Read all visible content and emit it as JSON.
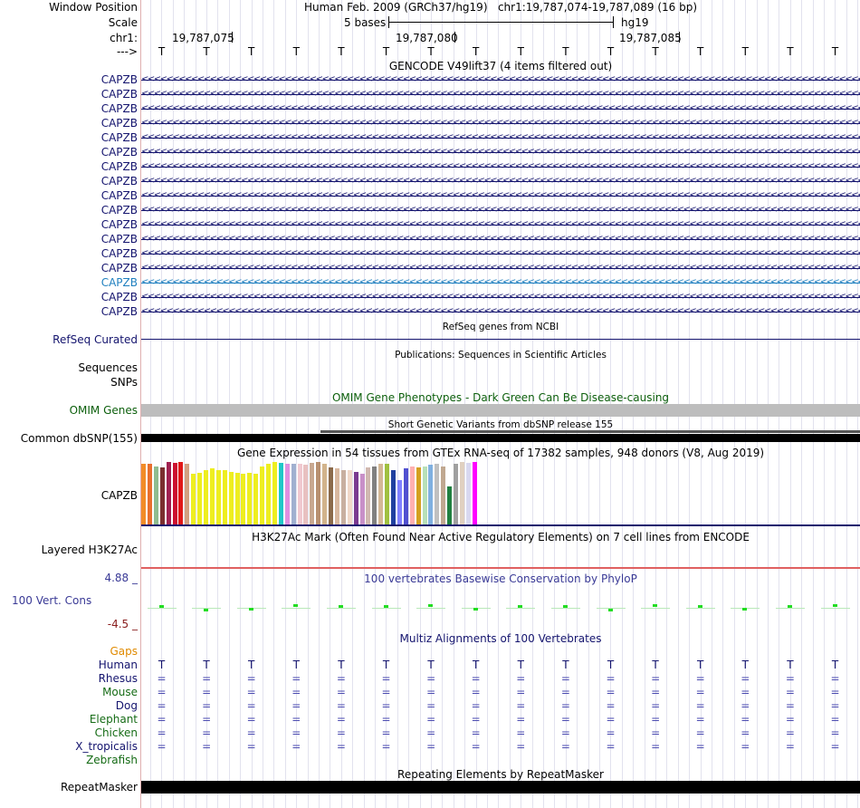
{
  "header": {
    "window_position_label": "Window Position",
    "window_position_text": "Human Feb. 2009 (GRCh37/hg19)   chr1:19,787,074-19,787,089 (16 bp)",
    "scale_label": "Scale",
    "scale_text": "5 bases",
    "scale_assembly": "hg19",
    "chrom_label": "chr1:",
    "coord_ticks": [
      "19,787,075",
      "19,787,080",
      "19,787,085"
    ],
    "strand_label": "--->",
    "bases": [
      "T",
      "T",
      "T",
      "T",
      "T",
      "T",
      "T",
      "T",
      "T",
      "T",
      "T",
      "T",
      "T",
      "T",
      "T",
      "T"
    ]
  },
  "gencode": {
    "title": "GENCODE V49lift37 (4 items filtered out)",
    "genes": [
      {
        "label": "CAPZB",
        "highlight": false
      },
      {
        "label": "CAPZB",
        "highlight": false
      },
      {
        "label": "CAPZB",
        "highlight": false
      },
      {
        "label": "CAPZB",
        "highlight": false
      },
      {
        "label": "CAPZB",
        "highlight": false
      },
      {
        "label": "CAPZB",
        "highlight": false
      },
      {
        "label": "CAPZB",
        "highlight": false
      },
      {
        "label": "CAPZB",
        "highlight": false
      },
      {
        "label": "CAPZB",
        "highlight": false
      },
      {
        "label": "CAPZB",
        "highlight": false
      },
      {
        "label": "CAPZB",
        "highlight": false
      },
      {
        "label": "CAPZB",
        "highlight": false
      },
      {
        "label": "CAPZB",
        "highlight": false
      },
      {
        "label": "CAPZB",
        "highlight": false
      },
      {
        "label": "CAPZB",
        "highlight": true
      },
      {
        "label": "CAPZB",
        "highlight": false
      },
      {
        "label": "CAPZB",
        "highlight": false
      }
    ],
    "chevron_text": "<<<<<<<<<<<<<<<<<<<<<<<<<<<<<<<<<<<<<<<<<<<<<<<<<<<<<<<<<<<<<<<<<<<<<<<<<<<<<<<<<<<<<<<<<<<<<<<<<<<<<<<<<<<<<<<<<<<<<<<<<<<<<<<<<<<<<<<<<<<<<<<<<<<<<<<<<<<<<<<<<<<<<<<<<<<<<<<<<<<<"
  },
  "refseq": {
    "title": "RefSeq genes from NCBI",
    "label": "RefSeq Curated"
  },
  "publications": {
    "title": "Publications: Sequences in Scientific Articles",
    "label_line1": "Sequences",
    "label_line2": "SNPs"
  },
  "omim": {
    "title": "OMIM Gene Phenotypes - Dark Green Can Be Disease-causing",
    "label": "OMIM Genes"
  },
  "dbsnp": {
    "title": "Short Genetic Variants from dbSNP release 155",
    "label": "Common dbSNP(155)"
  },
  "gtex": {
    "title": "Gene Expression in 54 tissues from GTEx RNA-seq of 17382 samples, 948 donors (V8, Aug 2019)",
    "label": "CAPZB",
    "tissue_levels": [
      0.95,
      0.95,
      0.92,
      0.9,
      0.98,
      0.97,
      0.99,
      0.95,
      0.8,
      0.82,
      0.85,
      0.88,
      0.86,
      0.85,
      0.83,
      0.82,
      0.8,
      0.82,
      0.8,
      0.92,
      0.95,
      0.98,
      0.97,
      0.95,
      0.96,
      0.95,
      0.94,
      0.97,
      0.98,
      0.95,
      0.9,
      0.88,
      0.85,
      0.86,
      0.83,
      0.8,
      0.9,
      0.92,
      0.95,
      0.96,
      0.85,
      0.7,
      0.88,
      0.92,
      0.9,
      0.92,
      0.94,
      0.96,
      0.92,
      0.6,
      0.96,
      0.98,
      0.97,
      0.99
    ],
    "tissue_colors": [
      "#f28c28",
      "#e86f2e",
      "#8fbc8f",
      "#7b2f2f",
      "#a02050",
      "#cc1030",
      "#e01818",
      "#d2a080",
      "#eeee20",
      "#eeee20",
      "#eeee20",
      "#eeee20",
      "#eeee20",
      "#eeee20",
      "#eeee20",
      "#eeee20",
      "#eeee20",
      "#eeee20",
      "#eeee20",
      "#eeee20",
      "#eeee20",
      "#eeee20",
      "#20c8c8",
      "#e090e0",
      "#a0b0d0",
      "#f0c8d0",
      "#e8c0c0",
      "#c8a890",
      "#b89070",
      "#d2b48c",
      "#8b6a4a",
      "#d8b8a0",
      "#c8b0a0",
      "#f0d8c8",
      "#7a3a90",
      "#c890c8",
      "#d0b8b0",
      "#808080",
      "#d4b896",
      "#a0c040",
      "#2040a0",
      "#8080ff",
      "#5050d0",
      "#ffb0b0",
      "#d4a020",
      "#b8e0b8",
      "#80b0e0",
      "#c0c0c0",
      "#c0a890",
      "#208040",
      "#a0a0a0",
      "#e0d0c0",
      "#d8d8f0",
      "#ff00ff"
    ]
  },
  "h3k27ac": {
    "title": "H3K27Ac Mark (Often Found Near Active Regulatory Elements) on 7 cell lines from ENCODE",
    "label": "Layered H3K27Ac"
  },
  "phylop": {
    "title": "100 vertebrates Basewise Conservation by PhyloP",
    "label": "100 Vert. Cons",
    "max_label": "4.88 _",
    "min_label": "-4.5 _",
    "scores": [
      0.4,
      -0.3,
      -0.1,
      0.5,
      0.4,
      0.35,
      0.45,
      -0.25,
      0.4,
      0.35,
      -0.3,
      0.45,
      0.4,
      -0.1,
      0.35,
      0.45
    ]
  },
  "multiz": {
    "title": "Multiz Alignments of 100 Vertebrates",
    "gaps_label": "Gaps",
    "species": [
      {
        "name": "Human",
        "symbol": "T",
        "color": "#14146e"
      },
      {
        "name": "Rhesus",
        "symbol": "=",
        "color": "#14146e"
      },
      {
        "name": "Mouse",
        "symbol": "=",
        "color": "#156b15"
      },
      {
        "name": "Dog",
        "symbol": "=",
        "color": "#14146e"
      },
      {
        "name": "Elephant",
        "symbol": "=",
        "color": "#156b15"
      },
      {
        "name": "Chicken",
        "symbol": "=",
        "color": "#156b15"
      },
      {
        "name": "X_tropicalis",
        "symbol": "=",
        "color": "#14146e"
      },
      {
        "name": "Zebrafish",
        "symbol": "",
        "color": "#156b15"
      }
    ]
  },
  "repeatmasker": {
    "title": "Repeating Elements by RepeatMasker",
    "label": "RepeatMasker"
  },
  "colors": {
    "navy": "#14146e",
    "blue_link": "#1f7fbf",
    "omim_green": "#0c5f0c",
    "phylo_blue": "#3a3a96",
    "phylo_min": "#8b2020",
    "gaps_orange": "#e08a00",
    "species_green": "#156b15",
    "h3k27ac_red": "#e06060"
  }
}
